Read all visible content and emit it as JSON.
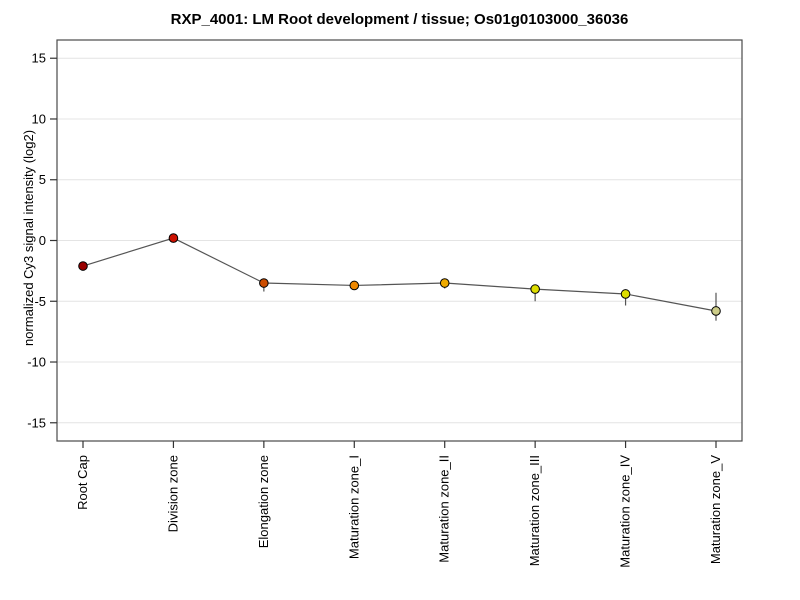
{
  "chart_data": {
    "type": "line",
    "title": "RXP_4001: LM Root development / tissue; Os01g0103000_36036",
    "xlabel": "",
    "ylabel": "normalized Cy3 signal intensity (log2)",
    "categories": [
      "Root Cap",
      "Division zone",
      "Elongation zone",
      "Maturation zone_I",
      "Maturation zone_II",
      "Maturation zone_III",
      "Maturation zone_IV",
      "Maturation zone_V"
    ],
    "values": [
      -2.1,
      0.2,
      -3.5,
      -3.7,
      -3.5,
      -4.0,
      -4.4,
      -5.8
    ],
    "error_low": [
      0,
      0,
      0.7,
      0.35,
      0.45,
      1.0,
      0.95,
      0.8
    ],
    "error_high": [
      0,
      0,
      0.3,
      0.25,
      0.3,
      0.25,
      0.25,
      1.5
    ],
    "point_colors": [
      "#990000",
      "#cc1100",
      "#cc4d00",
      "#ee8800",
      "#eeaa00",
      "#dddd00",
      "#dddd00",
      "#cccc88"
    ],
    "yticks": [
      15,
      10,
      5,
      0,
      -5,
      -10,
      -15
    ],
    "ylim": [
      -16.5,
      16.5
    ],
    "grid": true,
    "legend": "none",
    "line_color": "#555555",
    "error_bar_color": "#555555",
    "grid_color": "#e4e4e4",
    "axis_color": "#4a4a4a",
    "tick_color": "#333333",
    "marker_outline_color": "#000000",
    "background": "#ffffff"
  }
}
